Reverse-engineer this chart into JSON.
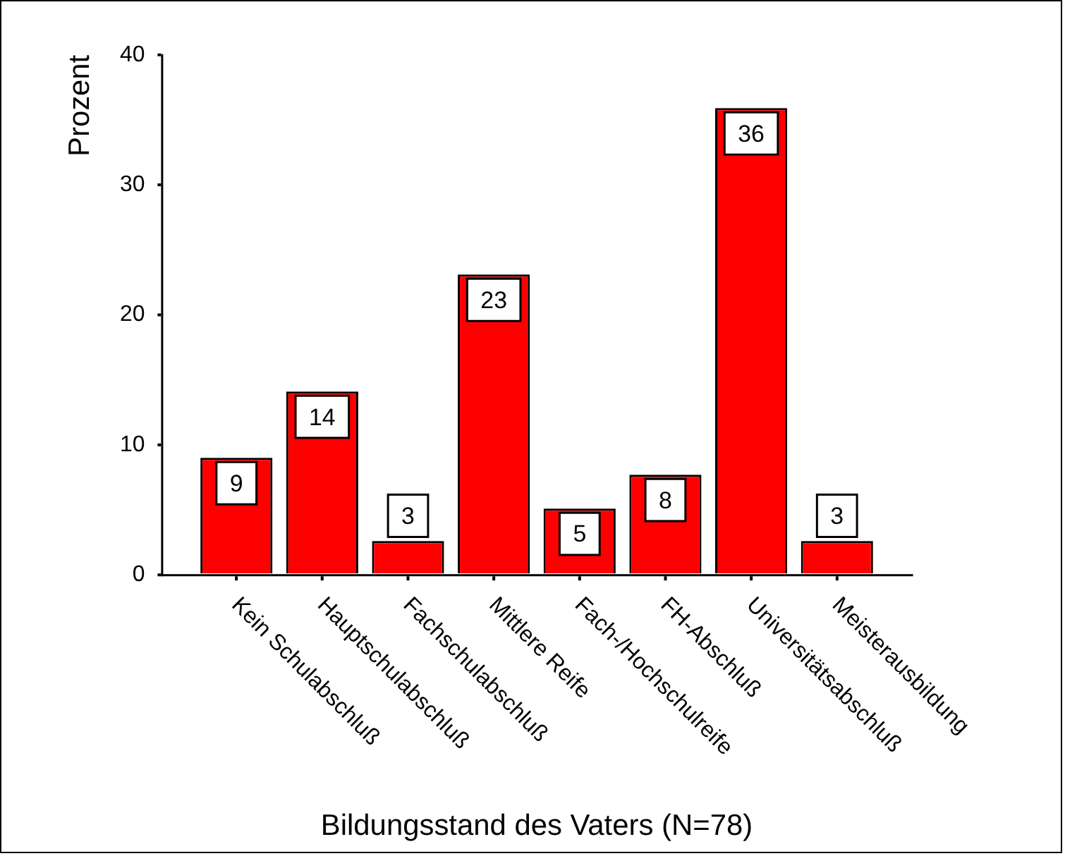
{
  "chart_data": {
    "type": "bar",
    "xlabel": "Bildungsstand des Vaters (N=78)",
    "ylabel": "Prozent",
    "categories": [
      "Kein Schulabschluß",
      "Hauptschulabschluß",
      "Fachschulabschluß",
      "Mittlere Reife",
      "Fach-/Hochschulreife",
      "FH-Abschluß",
      "Universitätsabschluß",
      "Meisterausbildung"
    ],
    "values": [
      9,
      14.1,
      2.6,
      23.1,
      5.1,
      7.7,
      35.9,
      2.6
    ],
    "value_labels": [
      "9",
      "14",
      "3",
      "23",
      "5",
      "8",
      "36",
      "3"
    ],
    "color": "#ff0000",
    "ylim": [
      0,
      40
    ],
    "yticks": [
      0,
      10,
      20,
      30,
      40
    ]
  }
}
